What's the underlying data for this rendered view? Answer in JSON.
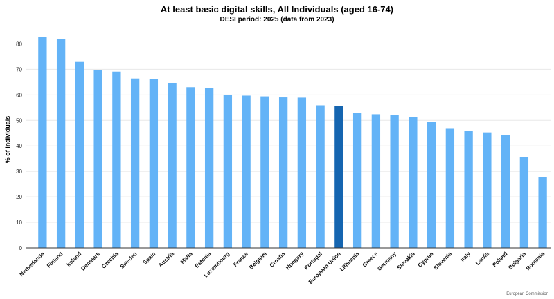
{
  "chart_data": {
    "type": "bar",
    "title": "At least basic digital skills, All Individuals (aged 16-74)",
    "subtitle": "DESI period: 2025 (data from 2023)",
    "xlabel": "",
    "ylabel": "% of individuals",
    "ylim": [
      0,
      85
    ],
    "yticks": [
      0,
      10,
      20,
      30,
      40,
      50,
      60,
      70,
      80
    ],
    "grid": true,
    "categories": [
      "Netherlands",
      "Finland",
      "Ireland",
      "Denmark",
      "Czechia",
      "Sweden",
      "Spain",
      "Austria",
      "Malta",
      "Estonia",
      "Luxembourg",
      "France",
      "Belgium",
      "Croatia",
      "Hungary",
      "Portugal",
      "European Union",
      "Lithuania",
      "Greece",
      "Germany",
      "Slovakia",
      "Cyprus",
      "Slovenia",
      "Italy",
      "Latvia",
      "Poland",
      "Bulgaria",
      "Romania"
    ],
    "values": [
      82.7,
      82.0,
      72.9,
      69.6,
      69.1,
      66.4,
      66.2,
      64.7,
      63.0,
      62.6,
      60.1,
      59.7,
      59.4,
      59.0,
      58.9,
      55.9,
      55.6,
      52.9,
      52.4,
      52.2,
      51.3,
      49.5,
      46.7,
      45.8,
      45.3,
      44.3,
      35.5,
      27.7
    ],
    "highlight": "European Union",
    "colors": {
      "bar": "#63b3f7",
      "highlight": "#1565b0",
      "grid": "#e8e8e8",
      "axis": "#333333"
    }
  },
  "footer": {
    "source": "European Commission"
  }
}
